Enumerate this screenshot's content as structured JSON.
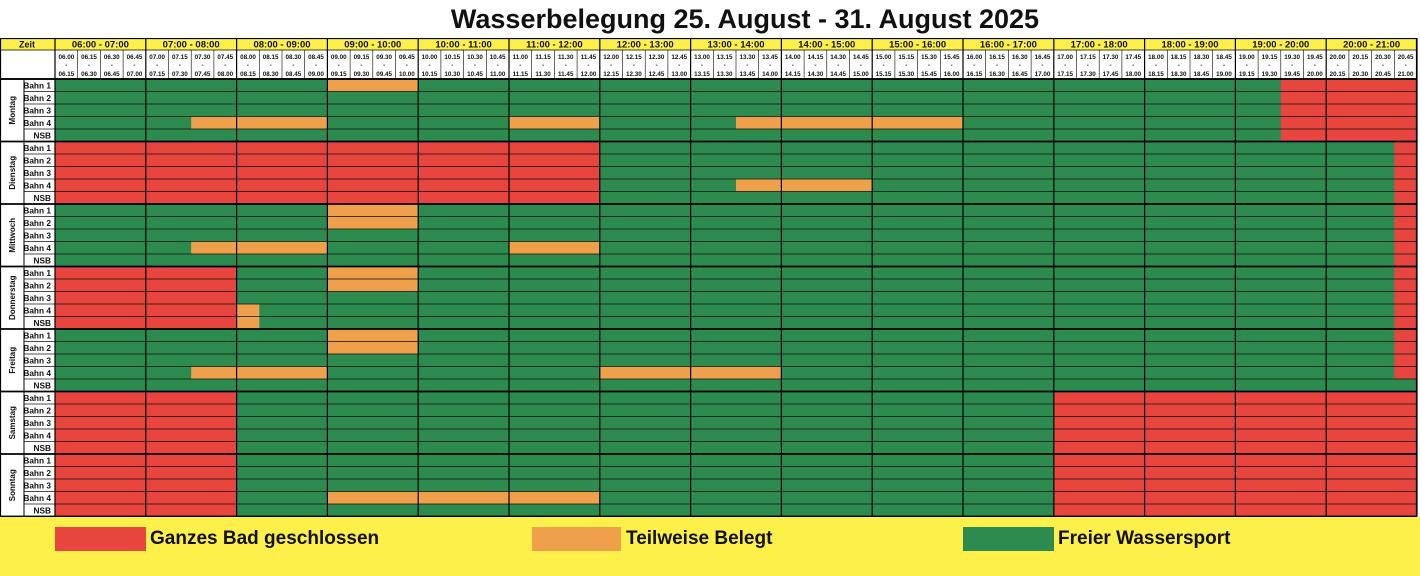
{
  "title": "Wasserbelegung 25. August - 31. August 2025",
  "colors": {
    "closed": "#e8453f",
    "partial": "#eea04a",
    "free": "#2e8b4f",
    "header_bg": "#fdf04a"
  },
  "header": {
    "zeit_label": "Zeit",
    "hour_ranges": [
      "06:00 - 07:00",
      "07:00 - 08:00",
      "08:00 - 09:00",
      "09:00 - 10:00",
      "10:00 - 11:00",
      "11:00 - 12:00",
      "12:00 - 13:00",
      "13:00 - 14:00",
      "14:00 - 15:00",
      "15:00 - 16:00",
      "16:00 - 17:00",
      "17:00 - 18:00",
      "18:00 - 19:00",
      "19:00 - 20:00",
      "20:00 - 21:00"
    ],
    "slots": [
      [
        "06.00",
        "06.15"
      ],
      [
        "06.15",
        "06.30"
      ],
      [
        "06.30",
        "06.45"
      ],
      [
        "06.45",
        "07.00"
      ],
      [
        "07.00",
        "07.15"
      ],
      [
        "07.15",
        "07.30"
      ],
      [
        "07.30",
        "07.45"
      ],
      [
        "07.45",
        "08.00"
      ],
      [
        "08.00",
        "08.15"
      ],
      [
        "08.15",
        "08.30"
      ],
      [
        "08.30",
        "08.45"
      ],
      [
        "08.45",
        "09.00"
      ],
      [
        "09.00",
        "09.15"
      ],
      [
        "09.15",
        "09.30"
      ],
      [
        "09.30",
        "09.45"
      ],
      [
        "09.45",
        "10.00"
      ],
      [
        "10.00",
        "10.15"
      ],
      [
        "10.15",
        "10.30"
      ],
      [
        "10.30",
        "10.45"
      ],
      [
        "10.45",
        "11.00"
      ],
      [
        "11.00",
        "11.15"
      ],
      [
        "11.15",
        "11.30"
      ],
      [
        "11.30",
        "11.45"
      ],
      [
        "11.45",
        "12.00"
      ],
      [
        "12.00",
        "12.15"
      ],
      [
        "12.15",
        "12.30"
      ],
      [
        "12.30",
        "12.45"
      ],
      [
        "12.45",
        "13.00"
      ],
      [
        "13.00",
        "13.15"
      ],
      [
        "13.15",
        "13.30"
      ],
      [
        "13.30",
        "13.45"
      ],
      [
        "13.45",
        "14.00"
      ],
      [
        "14.00",
        "14.15"
      ],
      [
        "14.15",
        "14.30"
      ],
      [
        "14.30",
        "14.45"
      ],
      [
        "14.45",
        "15.00"
      ],
      [
        "15.00",
        "15.15"
      ],
      [
        "15.15",
        "15.30"
      ],
      [
        "15.30",
        "15.45"
      ],
      [
        "15.45",
        "16.00"
      ],
      [
        "16.00",
        "16.15"
      ],
      [
        "16.15",
        "16.30"
      ],
      [
        "16.30",
        "16.45"
      ],
      [
        "16.45",
        "17.00"
      ],
      [
        "17.00",
        "17.15"
      ],
      [
        "17.15",
        "17.30"
      ],
      [
        "17.30",
        "17.45"
      ],
      [
        "17.45",
        "18.00"
      ],
      [
        "18.00",
        "18.15"
      ],
      [
        "18.15",
        "18.30"
      ],
      [
        "18.30",
        "18.45"
      ],
      [
        "18.45",
        "19.00"
      ],
      [
        "19.00",
        "19.15"
      ],
      [
        "19.15",
        "19.30"
      ],
      [
        "19.30",
        "19.45"
      ],
      [
        "19.45",
        "20.00"
      ],
      [
        "20.00",
        "20.15"
      ],
      [
        "20.15",
        "20.30"
      ],
      [
        "20.30",
        "20.45"
      ],
      [
        "20.45",
        "21.00"
      ]
    ]
  },
  "lanes": [
    "Bahn 1",
    "Bahn 2",
    "Bahn 3",
    "Bahn 4",
    "NSB"
  ],
  "days": [
    {
      "name": "Montag",
      "blocks": [
        {
          "from": "09:00",
          "to": "10:00",
          "lanes": [
            "Bahn 1"
          ],
          "status": "partial"
        },
        {
          "from": "07:30",
          "to": "09:00",
          "lanes": [
            "Bahn 4"
          ],
          "status": "partial"
        },
        {
          "from": "11:00",
          "to": "12:00",
          "lanes": [
            "Bahn 4"
          ],
          "status": "partial"
        },
        {
          "from": "13:30",
          "to": "16:00",
          "lanes": [
            "Bahn 4"
          ],
          "status": "partial"
        },
        {
          "from": "19:30",
          "to": "21:00",
          "lanes": [
            "Bahn 1",
            "Bahn 2",
            "Bahn 3",
            "Bahn 4",
            "NSB"
          ],
          "status": "closed"
        }
      ]
    },
    {
      "name": "Dienstag",
      "blocks": [
        {
          "from": "06:00",
          "to": "12:00",
          "lanes": [
            "Bahn 1",
            "Bahn 2",
            "Bahn 3",
            "Bahn 4",
            "NSB"
          ],
          "status": "closed"
        },
        {
          "from": "13:30",
          "to": "15:00",
          "lanes": [
            "Bahn 4"
          ],
          "status": "partial"
        },
        {
          "from": "20:45",
          "to": "21:00",
          "lanes": [
            "Bahn 1",
            "Bahn 2",
            "Bahn 3",
            "Bahn 4",
            "NSB"
          ],
          "status": "closed"
        }
      ]
    },
    {
      "name": "Mittwoch",
      "blocks": [
        {
          "from": "09:00",
          "to": "10:00",
          "lanes": [
            "Bahn 1",
            "Bahn 2"
          ],
          "status": "partial"
        },
        {
          "from": "07:30",
          "to": "09:00",
          "lanes": [
            "Bahn 4"
          ],
          "status": "partial"
        },
        {
          "from": "11:00",
          "to": "12:00",
          "lanes": [
            "Bahn 4"
          ],
          "status": "partial"
        },
        {
          "from": "20:45",
          "to": "21:00",
          "lanes": [
            "Bahn 1",
            "Bahn 2",
            "Bahn 3",
            "Bahn 4",
            "NSB"
          ],
          "status": "closed"
        }
      ]
    },
    {
      "name": "Donnerstag",
      "blocks": [
        {
          "from": "06:00",
          "to": "08:00",
          "lanes": [
            "Bahn 1",
            "Bahn 2",
            "Bahn 3",
            "Bahn 4",
            "NSB"
          ],
          "status": "closed"
        },
        {
          "from": "09:00",
          "to": "10:00",
          "lanes": [
            "Bahn 1",
            "Bahn 2"
          ],
          "status": "partial"
        },
        {
          "from": "08:00",
          "to": "08:15",
          "lanes": [
            "Bahn 4",
            "NSB"
          ],
          "status": "partial"
        },
        {
          "from": "20:45",
          "to": "21:00",
          "lanes": [
            "Bahn 1",
            "Bahn 2",
            "Bahn 3",
            "Bahn 4",
            "NSB"
          ],
          "status": "closed"
        }
      ]
    },
    {
      "name": "Freitag",
      "blocks": [
        {
          "from": "09:00",
          "to": "10:00",
          "lanes": [
            "Bahn 1",
            "Bahn 2"
          ],
          "status": "partial"
        },
        {
          "from": "07:30",
          "to": "09:00",
          "lanes": [
            "Bahn 4"
          ],
          "status": "partial"
        },
        {
          "from": "12:00",
          "to": "14:00",
          "lanes": [
            "Bahn 4"
          ],
          "status": "partial"
        },
        {
          "from": "20:45",
          "to": "21:00",
          "lanes": [
            "Bahn 1",
            "Bahn 2",
            "Bahn 3",
            "Bahn 4"
          ],
          "status": "closed"
        }
      ]
    },
    {
      "name": "Samstag",
      "blocks": [
        {
          "from": "06:00",
          "to": "08:00",
          "lanes": [
            "Bahn 1",
            "Bahn 2",
            "Bahn 3",
            "Bahn 4",
            "NSB"
          ],
          "status": "closed"
        },
        {
          "from": "17:00",
          "to": "21:00",
          "lanes": [
            "Bahn 1",
            "Bahn 2",
            "Bahn 3",
            "Bahn 4",
            "NSB"
          ],
          "status": "closed"
        }
      ]
    },
    {
      "name": "Sonntag",
      "blocks": [
        {
          "from": "06:00",
          "to": "08:00",
          "lanes": [
            "Bahn 1",
            "Bahn 2",
            "Bahn 3",
            "Bahn 4",
            "NSB"
          ],
          "status": "closed"
        },
        {
          "from": "09:00",
          "to": "12:00",
          "lanes": [
            "Bahn 4"
          ],
          "status": "partial"
        },
        {
          "from": "17:00",
          "to": "21:00",
          "lanes": [
            "Bahn 1",
            "Bahn 2",
            "Bahn 3",
            "Bahn 4",
            "NSB"
          ],
          "status": "closed"
        }
      ]
    }
  ],
  "legend": [
    {
      "status": "closed",
      "label": "Ganzes Bad geschlossen"
    },
    {
      "status": "partial",
      "label": "Teilweise Belegt"
    },
    {
      "status": "free",
      "label": "Freier Wassersport"
    }
  ]
}
